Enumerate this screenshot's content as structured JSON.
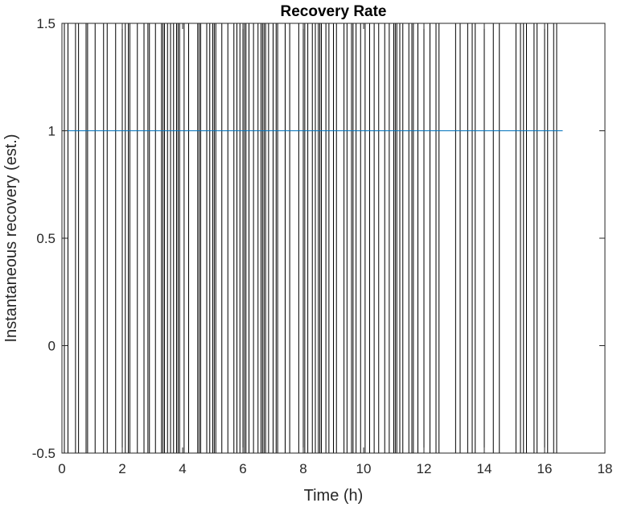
{
  "chart_data": {
    "type": "line",
    "title": "Recovery Rate",
    "xlabel": "Time (h)",
    "ylabel": "Instantaneous recovery (est.)",
    "xlim": [
      0,
      18
    ],
    "ylim": [
      -0.5,
      1.5
    ],
    "x_ticks": [
      "0",
      "2",
      "4",
      "6",
      "8",
      "10",
      "12",
      "14",
      "16",
      "18"
    ],
    "y_ticks": [
      "-0.5",
      "0",
      "0.5",
      "1",
      "1.5"
    ],
    "grid": false,
    "series": [
      {
        "type": "line",
        "color": "#0072BD",
        "x": [
          0,
          16.6
        ],
        "y": [
          1,
          1
        ]
      },
      {
        "type": "vertical_lines",
        "color": "#000000",
        "x": [
          0.08,
          0.2,
          0.45,
          0.55,
          0.8,
          0.85,
          1.1,
          1.38,
          1.5,
          1.78,
          2.0,
          2.1,
          2.2,
          2.25,
          2.5,
          2.72,
          2.85,
          2.9,
          3.1,
          3.3,
          3.35,
          3.4,
          3.5,
          3.6,
          3.7,
          3.8,
          3.85,
          3.9,
          4.05,
          4.2,
          4.5,
          4.55,
          4.6,
          4.8,
          4.9,
          5.0,
          5.05,
          5.1,
          5.3,
          5.5,
          5.7,
          5.8,
          5.9,
          6.0,
          6.05,
          6.1,
          6.2,
          6.35,
          6.5,
          6.6,
          6.65,
          6.7,
          6.75,
          6.85,
          7.0,
          7.1,
          7.15,
          7.4,
          7.55,
          7.85,
          8.0,
          8.05,
          8.15,
          8.3,
          8.4,
          8.5,
          8.55,
          8.6,
          8.75,
          8.85,
          9.0,
          9.1,
          9.35,
          9.45,
          9.6,
          9.65,
          9.75,
          9.9,
          10.05,
          10.2,
          10.35,
          10.5,
          10.7,
          10.85,
          11.0,
          11.05,
          11.1,
          11.2,
          11.3,
          11.5,
          11.6,
          11.65,
          11.8,
          12.0,
          12.2,
          12.4,
          12.5,
          13.05,
          13.2,
          13.45,
          13.6,
          13.7,
          14.0,
          14.3,
          14.5,
          15.05,
          15.2,
          15.3,
          15.4,
          15.65,
          15.75,
          16.0,
          16.1,
          16.3,
          16.4
        ]
      }
    ]
  }
}
